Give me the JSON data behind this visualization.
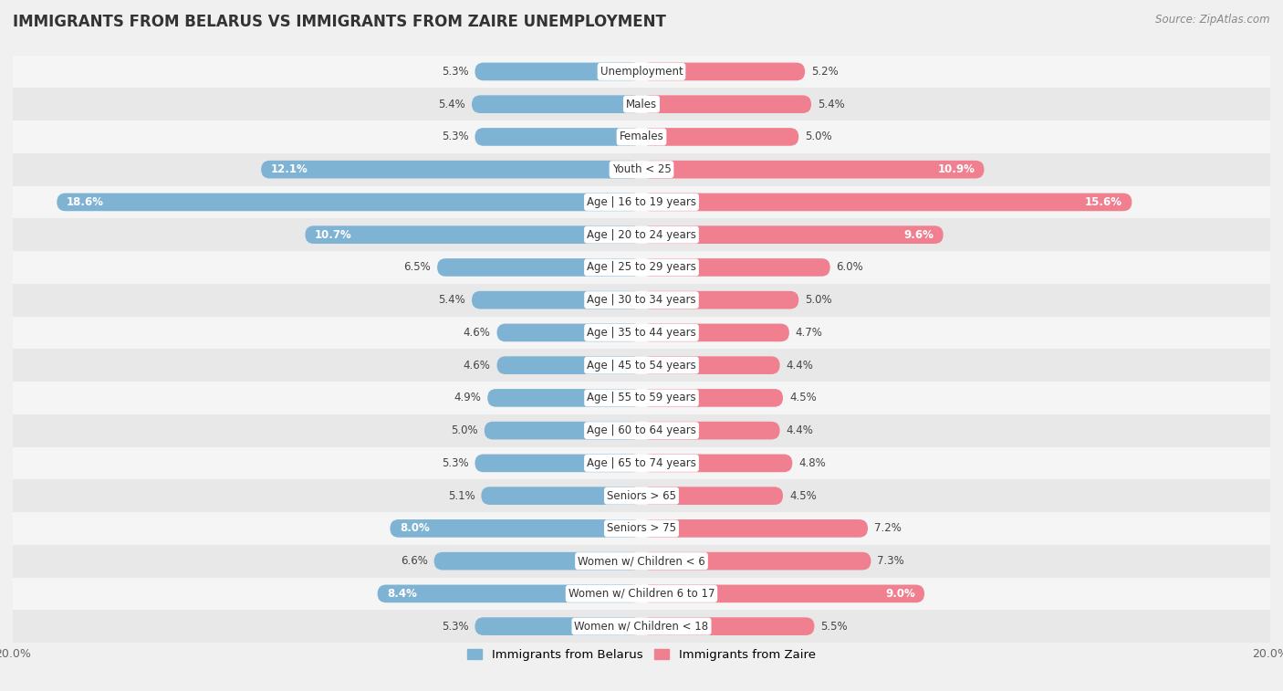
{
  "title": "IMMIGRANTS FROM BELARUS VS IMMIGRANTS FROM ZAIRE UNEMPLOYMENT",
  "source": "Source: ZipAtlas.com",
  "categories": [
    "Unemployment",
    "Males",
    "Females",
    "Youth < 25",
    "Age | 16 to 19 years",
    "Age | 20 to 24 years",
    "Age | 25 to 29 years",
    "Age | 30 to 34 years",
    "Age | 35 to 44 years",
    "Age | 45 to 54 years",
    "Age | 55 to 59 years",
    "Age | 60 to 64 years",
    "Age | 65 to 74 years",
    "Seniors > 65",
    "Seniors > 75",
    "Women w/ Children < 6",
    "Women w/ Children 6 to 17",
    "Women w/ Children < 18"
  ],
  "belarus_values": [
    5.3,
    5.4,
    5.3,
    12.1,
    18.6,
    10.7,
    6.5,
    5.4,
    4.6,
    4.6,
    4.9,
    5.0,
    5.3,
    5.1,
    8.0,
    6.6,
    8.4,
    5.3
  ],
  "zaire_values": [
    5.2,
    5.4,
    5.0,
    10.9,
    15.6,
    9.6,
    6.0,
    5.0,
    4.7,
    4.4,
    4.5,
    4.4,
    4.8,
    4.5,
    7.2,
    7.3,
    9.0,
    5.5
  ],
  "belarus_color": "#7fb3d3",
  "zaire_color": "#f08090",
  "row_colors": [
    "#f5f5f5",
    "#e8e8e8"
  ],
  "background_color": "#f0f0f0",
  "max_value": 20.0,
  "legend_belarus": "Immigrants from Belarus",
  "legend_zaire": "Immigrants from Zaire",
  "label_fontsize": 8.5,
  "cat_fontsize": 8.5,
  "title_fontsize": 12,
  "source_fontsize": 8.5
}
